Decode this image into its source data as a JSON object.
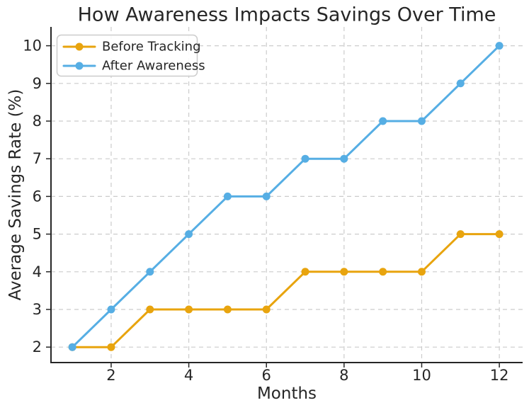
{
  "chart_data": {
    "type": "line",
    "title": "How Awareness Impacts Savings Over Time",
    "xlabel": "Months",
    "ylabel": "Average Savings Rate (%)",
    "x": [
      1,
      2,
      3,
      4,
      5,
      6,
      7,
      8,
      9,
      10,
      11,
      12
    ],
    "series": [
      {
        "name": "Before Tracking",
        "color": "#E8A40E",
        "marker": "circle",
        "values": [
          2,
          2,
          3,
          3,
          3,
          3,
          4,
          4,
          4,
          4,
          5,
          5
        ]
      },
      {
        "name": "After Awareness",
        "color": "#56AEE4",
        "marker": "circle",
        "values": [
          2,
          3,
          4,
          5,
          6,
          6,
          7,
          7,
          8,
          8,
          9,
          10
        ]
      }
    ],
    "xticks": [
      2,
      4,
      6,
      8,
      10,
      12
    ],
    "yticks": [
      2,
      3,
      4,
      5,
      6,
      7,
      8,
      9,
      10
    ],
    "xlim": [
      0.45,
      12.6
    ],
    "ylim": [
      1.59,
      10.5
    ],
    "grid": true,
    "grid_style": "dashed",
    "legend_position": "upper-left",
    "colors": {
      "text": "#262626",
      "spine": "#262626",
      "grid": "#cccccc",
      "background": "#ffffff",
      "legend_border": "#cccccc",
      "legend_fill": "#ffffff"
    }
  }
}
